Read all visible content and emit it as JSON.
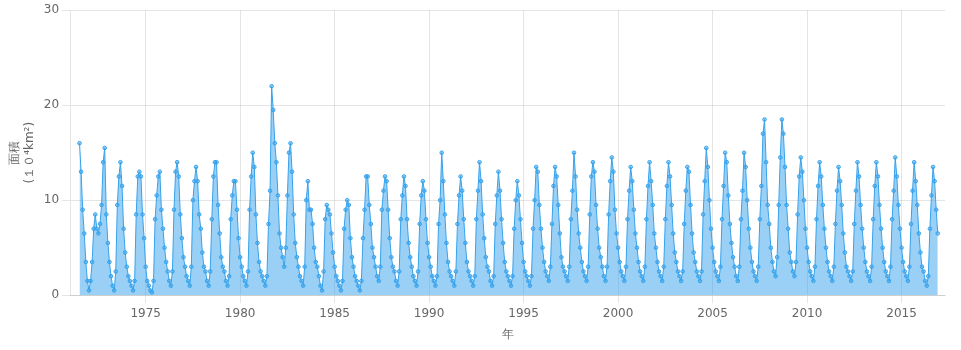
{
  "chart_data": {
    "type": "area",
    "x_label": "年",
    "y_label": [
      "面積",
      "(１０⁴km²)"
    ],
    "marker": "circle",
    "grid": true,
    "xlim": [
      1971.0,
      2017.3
    ],
    "ylim": [
      0,
      30
    ],
    "xticks": [
      1975,
      1980,
      1985,
      1990,
      1995,
      2000,
      2005,
      2010,
      2015
    ],
    "yticks": [
      0,
      10,
      20,
      30
    ],
    "x": [
      1971.5,
      1971.583333,
      1971.666667,
      1971.75,
      1971.833333,
      1971.916667,
      1972.0,
      1972.083333,
      1972.166667,
      1972.25,
      1972.333333,
      1972.416667,
      1972.5,
      1972.583333,
      1972.666667,
      1972.75,
      1972.833333,
      1972.916667,
      1973.0,
      1973.083333,
      1973.166667,
      1973.25,
      1973.333333,
      1973.416667,
      1973.5,
      1973.583333,
      1973.666667,
      1973.75,
      1973.833333,
      1973.916667,
      1974.0,
      1974.083333,
      1974.166667,
      1974.25,
      1974.333333,
      1974.416667,
      1974.5,
      1974.583333,
      1974.666667,
      1974.75,
      1974.833333,
      1974.916667,
      1975.0,
      1975.083333,
      1975.166667,
      1975.25,
      1975.333333,
      1975.416667,
      1975.5,
      1975.583333,
      1975.666667,
      1975.75,
      1975.833333,
      1975.916667,
      1976.0,
      1976.083333,
      1976.166667,
      1976.25,
      1976.333333,
      1976.416667,
      1976.5,
      1976.583333,
      1976.666667,
      1976.75,
      1976.833333,
      1976.916667,
      1977.0,
      1977.083333,
      1977.166667,
      1977.25,
      1977.333333,
      1977.416667,
      1977.5,
      1977.583333,
      1977.666667,
      1977.75,
      1977.833333,
      1977.916667,
      1978.0,
      1978.083333,
      1978.166667,
      1978.25,
      1978.333333,
      1978.416667,
      1978.5,
      1978.583333,
      1978.666667,
      1978.75,
      1978.833333,
      1978.916667,
      1979.0,
      1979.083333,
      1979.166667,
      1979.25,
      1979.333333,
      1979.416667,
      1979.5,
      1979.583333,
      1979.666667,
      1979.75,
      1979.833333,
      1979.916667,
      1980.0,
      1980.083333,
      1980.166667,
      1980.25,
      1980.333333,
      1980.416667,
      1980.5,
      1980.583333,
      1980.666667,
      1980.75,
      1980.833333,
      1980.916667,
      1981.0,
      1981.083333,
      1981.166667,
      1981.25,
      1981.333333,
      1981.416667,
      1981.5,
      1981.583333,
      1981.666667,
      1981.75,
      1981.833333,
      1981.916667,
      1982.0,
      1982.083333,
      1982.166667,
      1982.25,
      1982.333333,
      1982.416667,
      1982.5,
      1982.583333,
      1982.666667,
      1982.75,
      1982.833333,
      1982.916667,
      1983.0,
      1983.083333,
      1983.166667,
      1983.25,
      1983.333333,
      1983.416667,
      1983.5,
      1983.583333,
      1983.666667,
      1983.75,
      1983.833333,
      1983.916667,
      1984.0,
      1984.083333,
      1984.166667,
      1984.25,
      1984.333333,
      1984.416667,
      1984.5,
      1984.583333,
      1984.666667,
      1984.75,
      1984.833333,
      1984.916667,
      1985.0,
      1985.083333,
      1985.166667,
      1985.25,
      1985.333333,
      1985.416667,
      1985.5,
      1985.583333,
      1985.666667,
      1985.75,
      1985.833333,
      1985.916667,
      1986.0,
      1986.083333,
      1986.166667,
      1986.25,
      1986.333333,
      1986.416667,
      1986.5,
      1986.583333,
      1986.666667,
      1986.75,
      1986.833333,
      1986.916667,
      1987.0,
      1987.083333,
      1987.166667,
      1987.25,
      1987.333333,
      1987.416667,
      1987.5,
      1987.583333,
      1987.666667,
      1987.75,
      1987.833333,
      1987.916667,
      1988.0,
      1988.083333,
      1988.166667,
      1988.25,
      1988.333333,
      1988.416667,
      1988.5,
      1988.583333,
      1988.666667,
      1988.75,
      1988.833333,
      1988.916667,
      1989.0,
      1989.083333,
      1989.166667,
      1989.25,
      1989.333333,
      1989.416667,
      1989.5,
      1989.583333,
      1989.666667,
      1989.75,
      1989.833333,
      1989.916667,
      1990.0,
      1990.083333,
      1990.166667,
      1990.25,
      1990.333333,
      1990.416667,
      1990.5,
      1990.583333,
      1990.666667,
      1990.75,
      1990.833333,
      1990.916667,
      1991.0,
      1991.083333,
      1991.166667,
      1991.25,
      1991.333333,
      1991.416667,
      1991.5,
      1991.583333,
      1991.666667,
      1991.75,
      1991.833333,
      1991.916667,
      1992.0,
      1992.083333,
      1992.166667,
      1992.25,
      1992.333333,
      1992.416667,
      1992.5,
      1992.583333,
      1992.666667,
      1992.75,
      1992.833333,
      1992.916667,
      1993.0,
      1993.083333,
      1993.166667,
      1993.25,
      1993.333333,
      1993.416667,
      1993.5,
      1993.583333,
      1993.666667,
      1993.75,
      1993.833333,
      1993.916667,
      1994.0,
      1994.083333,
      1994.166667,
      1994.25,
      1994.333333,
      1994.416667,
      1994.5,
      1994.583333,
      1994.666667,
      1994.75,
      1994.833333,
      1994.916667,
      1995.0,
      1995.083333,
      1995.166667,
      1995.25,
      1995.333333,
      1995.416667,
      1995.5,
      1995.583333,
      1995.666667,
      1995.75,
      1995.833333,
      1995.916667,
      1996.0,
      1996.083333,
      1996.166667,
      1996.25,
      1996.333333,
      1996.416667,
      1996.5,
      1996.583333,
      1996.666667,
      1996.75,
      1996.833333,
      1996.916667,
      1997.0,
      1997.083333,
      1997.166667,
      1997.25,
      1997.333333,
      1997.416667,
      1997.5,
      1997.583333,
      1997.666667,
      1997.75,
      1997.833333,
      1997.916667,
      1998.0,
      1998.083333,
      1998.166667,
      1998.25,
      1998.333333,
      1998.416667,
      1998.5,
      1998.583333,
      1998.666667,
      1998.75,
      1998.833333,
      1998.916667,
      1999.0,
      1999.083333,
      1999.166667,
      1999.25,
      1999.333333,
      1999.416667,
      1999.5,
      1999.583333,
      1999.666667,
      1999.75,
      1999.833333,
      1999.916667,
      2000.0,
      2000.083333,
      2000.166667,
      2000.25,
      2000.333333,
      2000.416667,
      2000.5,
      2000.583333,
      2000.666667,
      2000.75,
      2000.833333,
      2000.916667,
      2001.0,
      2001.083333,
      2001.166667,
      2001.25,
      2001.333333,
      2001.416667,
      2001.5,
      2001.583333,
      2001.666667,
      2001.75,
      2001.833333,
      2001.916667,
      2002.0,
      2002.083333,
      2002.166667,
      2002.25,
      2002.333333,
      2002.416667,
      2002.5,
      2002.583333,
      2002.666667,
      2002.75,
      2002.833333,
      2002.916667,
      2003.0,
      2003.083333,
      2003.166667,
      2003.25,
      2003.333333,
      2003.416667,
      2003.5,
      2003.583333,
      2003.666667,
      2003.75,
      2003.833333,
      2003.916667,
      2004.0,
      2004.083333,
      2004.166667,
      2004.25,
      2004.333333,
      2004.416667,
      2004.5,
      2004.583333,
      2004.666667,
      2004.75,
      2004.833333,
      2004.916667,
      2005.0,
      2005.083333,
      2005.166667,
      2005.25,
      2005.333333,
      2005.416667,
      2005.5,
      2005.583333,
      2005.666667,
      2005.75,
      2005.833333,
      2005.916667,
      2006.0,
      2006.083333,
      2006.166667,
      2006.25,
      2006.333333,
      2006.416667,
      2006.5,
      2006.583333,
      2006.666667,
      2006.75,
      2006.833333,
      2006.916667,
      2007.0,
      2007.083333,
      2007.166667,
      2007.25,
      2007.333333,
      2007.416667,
      2007.5,
      2007.583333,
      2007.666667,
      2007.75,
      2007.833333,
      2007.916667,
      2008.0,
      2008.083333,
      2008.166667,
      2008.25,
      2008.333333,
      2008.416667,
      2008.5,
      2008.583333,
      2008.666667,
      2008.75,
      2008.833333,
      2008.916667,
      2009.0,
      2009.083333,
      2009.166667,
      2009.25,
      2009.333333,
      2009.416667,
      2009.5,
      2009.583333,
      2009.666667,
      2009.75,
      2009.833333,
      2009.916667,
      2010.0,
      2010.083333,
      2010.166667,
      2010.25,
      2010.333333,
      2010.416667,
      2010.5,
      2010.583333,
      2010.666667,
      2010.75,
      2010.833333,
      2010.916667,
      2011.0,
      2011.083333,
      2011.166667,
      2011.25,
      2011.333333,
      2011.416667,
      2011.5,
      2011.583333,
      2011.666667,
      2011.75,
      2011.833333,
      2011.916667,
      2012.0,
      2012.083333,
      2012.166667,
      2012.25,
      2012.333333,
      2012.416667,
      2012.5,
      2012.583333,
      2012.666667,
      2012.75,
      2012.833333,
      2012.916667,
      2013.0,
      2013.083333,
      2013.166667,
      2013.25,
      2013.333333,
      2013.416667,
      2013.5,
      2013.583333,
      2013.666667,
      2013.75,
      2013.833333,
      2013.916667,
      2014.0,
      2014.083333,
      2014.166667,
      2014.25,
      2014.333333,
      2014.416667,
      2014.5,
      2014.583333,
      2014.666667,
      2014.75,
      2014.833333,
      2014.916667,
      2015.0,
      2015.083333,
      2015.166667,
      2015.25,
      2015.333333,
      2015.416667,
      2015.5,
      2015.583333,
      2015.666667,
      2015.75,
      2015.833333,
      2015.916667,
      2016.0,
      2016.083333,
      2016.166667,
      2016.25,
      2016.333333,
      2016.416667,
      2016.5,
      2016.583333,
      2016.666667,
      2016.75,
      2016.833333,
      2016.916667
    ],
    "values": [
      16.0,
      13.0,
      9.0,
      6.5,
      3.5,
      1.5,
      0.5,
      1.5,
      3.5,
      7.0,
      8.5,
      7.0,
      6.5,
      7.5,
      9.5,
      14.0,
      15.5,
      8.5,
      5.5,
      3.5,
      2.0,
      1.0,
      0.5,
      2.5,
      9.5,
      12.5,
      14.0,
      11.5,
      7.0,
      4.5,
      3.0,
      2.0,
      1.5,
      1.0,
      0.5,
      1.5,
      8.5,
      12.5,
      13.0,
      12.5,
      8.5,
      6.0,
      3.0,
      1.5,
      1.0,
      0.5,
      0.3,
      1.5,
      8.0,
      10.5,
      12.5,
      13.0,
      9.0,
      7.0,
      5.0,
      3.5,
      2.5,
      1.5,
      1.0,
      2.5,
      9.0,
      13.0,
      14.0,
      12.5,
      8.5,
      6.0,
      4.0,
      3.0,
      2.0,
      1.5,
      1.0,
      3.0,
      10.0,
      12.0,
      13.5,
      12.0,
      8.5,
      7.0,
      4.5,
      3.0,
      2.5,
      1.5,
      1.0,
      2.5,
      8.0,
      12.5,
      14.0,
      14.0,
      9.5,
      6.5,
      4.0,
      3.0,
      2.5,
      1.5,
      1.0,
      2.0,
      8.0,
      10.5,
      12.0,
      12.0,
      9.0,
      6.0,
      4.0,
      3.0,
      2.0,
      1.5,
      1.0,
      2.5,
      9.0,
      12.5,
      15.0,
      13.5,
      8.5,
      5.5,
      3.5,
      2.5,
      2.0,
      1.5,
      1.0,
      2.0,
      7.5,
      11.0,
      22.0,
      19.5,
      16.0,
      14.0,
      10.5,
      6.5,
      5.0,
      4.0,
      3.0,
      5.0,
      10.5,
      15.0,
      16.0,
      13.0,
      8.5,
      5.5,
      4.0,
      3.0,
      2.0,
      1.5,
      1.0,
      3.0,
      10.0,
      12.0,
      9.0,
      9.0,
      7.5,
      5.0,
      3.5,
      3.0,
      2.0,
      1.0,
      0.5,
      2.5,
      8.0,
      9.5,
      9.0,
      8.5,
      6.5,
      4.5,
      3.0,
      2.0,
      1.5,
      1.0,
      0.5,
      1.5,
      7.0,
      9.0,
      10.0,
      9.5,
      6.0,
      4.0,
      3.0,
      2.0,
      1.5,
      1.0,
      0.5,
      1.5,
      6.0,
      9.0,
      12.5,
      12.5,
      9.5,
      7.5,
      5.0,
      4.0,
      3.0,
      2.0,
      1.5,
      3.0,
      9.0,
      11.0,
      12.5,
      12.0,
      9.0,
      6.0,
      4.0,
      3.0,
      2.5,
      1.5,
      1.0,
      2.5,
      8.0,
      10.5,
      12.5,
      11.5,
      8.0,
      5.5,
      4.0,
      3.0,
      2.0,
      1.5,
      1.0,
      2.5,
      7.5,
      10.5,
      12.0,
      11.0,
      8.0,
      5.5,
      4.0,
      3.0,
      2.0,
      1.5,
      1.0,
      2.0,
      7.5,
      10.0,
      15.0,
      12.0,
      8.5,
      5.5,
      3.5,
      2.5,
      2.0,
      1.5,
      1.0,
      2.5,
      7.5,
      10.5,
      12.5,
      11.0,
      8.0,
      5.5,
      3.5,
      2.5,
      2.0,
      1.5,
      1.0,
      2.0,
      8.0,
      11.0,
      14.0,
      12.0,
      8.5,
      6.0,
      4.0,
      3.0,
      2.5,
      1.5,
      1.0,
      2.0,
      7.5,
      10.5,
      13.0,
      11.0,
      8.0,
      5.5,
      3.5,
      2.5,
      2.0,
      1.5,
      1.0,
      2.0,
      7.0,
      10.0,
      12.0,
      10.5,
      8.0,
      5.5,
      3.5,
      2.5,
      2.0,
      1.5,
      1.0,
      2.0,
      7.0,
      10.0,
      13.5,
      13.0,
      9.5,
      7.0,
      5.0,
      3.5,
      2.5,
      2.0,
      1.5,
      3.0,
      7.5,
      11.5,
      13.5,
      12.5,
      9.5,
      6.5,
      4.0,
      3.0,
      2.5,
      2.0,
      1.5,
      3.0,
      8.0,
      11.0,
      15.0,
      12.5,
      9.0,
      6.5,
      5.0,
      3.5,
      2.5,
      2.0,
      1.5,
      3.0,
      8.5,
      12.5,
      14.0,
      13.0,
      9.5,
      7.0,
      5.0,
      4.0,
      3.0,
      2.0,
      1.5,
      3.0,
      8.5,
      12.0,
      14.5,
      13.0,
      9.0,
      6.5,
      5.0,
      3.5,
      2.5,
      2.0,
      1.5,
      3.0,
      8.0,
      11.0,
      13.5,
      12.0,
      9.0,
      6.5,
      5.0,
      3.5,
      2.5,
      2.0,
      1.5,
      3.0,
      8.0,
      11.5,
      14.0,
      12.0,
      9.5,
      6.5,
      5.0,
      3.5,
      2.5,
      2.0,
      1.5,
      3.0,
      8.0,
      11.5,
      14.0,
      12.5,
      9.5,
      6.5,
      4.5,
      3.5,
      2.5,
      2.0,
      1.5,
      2.5,
      7.5,
      11.0,
      13.5,
      13.0,
      9.5,
      6.5,
      4.5,
      3.5,
      2.5,
      2.0,
      1.5,
      2.5,
      8.5,
      12.0,
      15.5,
      13.5,
      10.0,
      7.0,
      5.0,
      3.5,
      2.5,
      2.0,
      1.5,
      3.0,
      8.0,
      11.5,
      15.0,
      14.0,
      10.5,
      7.5,
      5.5,
      4.0,
      3.0,
      2.0,
      1.5,
      3.0,
      8.0,
      11.0,
      15.0,
      13.5,
      10.0,
      7.0,
      5.0,
      3.5,
      2.5,
      2.0,
      1.5,
      3.0,
      8.0,
      11.5,
      17.0,
      18.5,
      14.0,
      9.5,
      7.5,
      5.0,
      3.5,
      2.5,
      2.0,
      4.0,
      9.5,
      14.5,
      18.5,
      17.0,
      13.5,
      9.5,
      7.0,
      4.5,
      3.5,
      2.5,
      2.0,
      3.5,
      8.5,
      12.5,
      14.5,
      13.0,
      10.0,
      7.0,
      5.0,
      3.5,
      2.5,
      2.0,
      1.5,
      3.0,
      8.0,
      11.5,
      14.0,
      12.5,
      9.5,
      7.0,
      5.0,
      3.5,
      2.5,
      2.0,
      1.5,
      3.0,
      7.5,
      11.0,
      13.5,
      12.0,
      9.5,
      6.5,
      4.5,
      3.0,
      2.5,
      2.0,
      1.5,
      2.5,
      7.5,
      11.0,
      14.0,
      12.5,
      9.5,
      7.0,
      5.0,
      3.5,
      2.5,
      2.0,
      1.5,
      3.0,
      8.0,
      11.5,
      14.0,
      12.5,
      9.5,
      7.0,
      5.0,
      3.5,
      2.5,
      2.0,
      1.5,
      3.0,
      8.0,
      11.0,
      14.5,
      12.5,
      9.5,
      7.0,
      5.0,
      3.5,
      2.5,
      2.0,
      1.5,
      3.0,
      7.5,
      11.0,
      14.0,
      12.0,
      9.5,
      6.5,
      4.5,
      3.0,
      2.5,
      1.5,
      1.0,
      2.0,
      7.0,
      10.5,
      13.5,
      12.0,
      9.0,
      6.5
    ]
  }
}
